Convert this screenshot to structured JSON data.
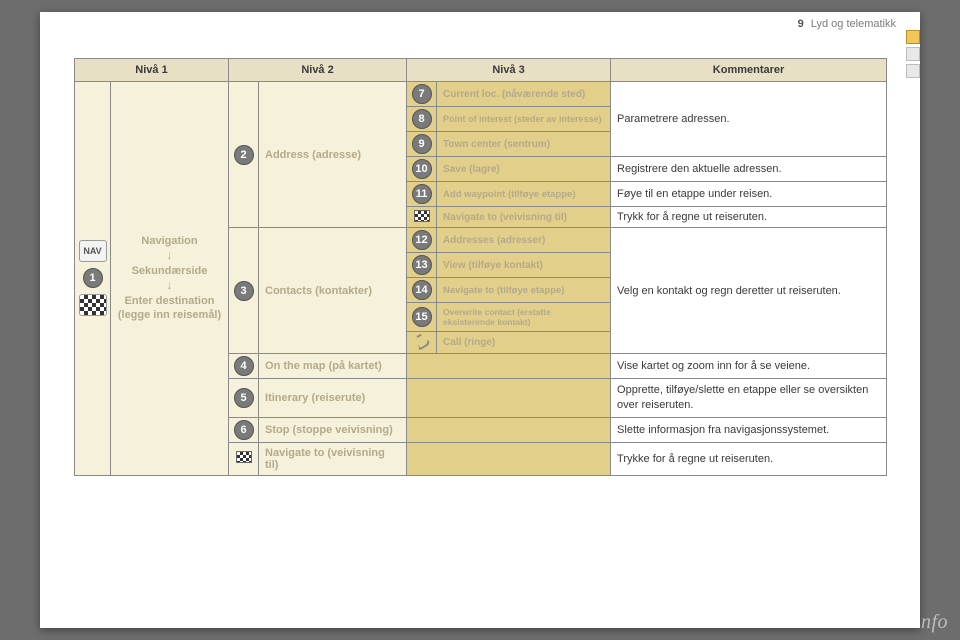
{
  "header": {
    "section_num": "9",
    "section_title": "Lyd og telematikk"
  },
  "table": {
    "headers": {
      "l1": "Nivå 1",
      "l2": "Nivå 2",
      "l3": "Nivå 3",
      "cmt": "Kommentarer"
    },
    "left": {
      "icon_top_label": "NAV",
      "circle": "1",
      "line1": "Navigation",
      "line2": "Sekundærside",
      "line3a": "Enter destination",
      "line3b": "(legge inn reisemål)"
    },
    "lvl2": {
      "r_address": {
        "num": "2",
        "label": "Address (adresse)"
      },
      "r_contacts": {
        "num": "3",
        "label": "Contacts (kontakter)"
      },
      "r_map": {
        "num": "4",
        "label": "On the map (på kartet)"
      },
      "r_itin": {
        "num": "5",
        "label": "Itinerary (reiserute)"
      },
      "r_stop": {
        "num": "6",
        "label": "Stop (stoppe veivisning)"
      },
      "r_navto": {
        "label": "Navigate to (veivisning til)"
      }
    },
    "lvl3": {
      "a7": {
        "num": "7",
        "label": "Current loc. (nåværende sted)"
      },
      "a8": {
        "num": "8",
        "label": "Point of interest (steder av interesse)"
      },
      "a9": {
        "num": "9",
        "label": "Town center (sentrum)"
      },
      "a10": {
        "num": "10",
        "label": "Save (lagre)"
      },
      "a11": {
        "num": "11",
        "label": "Add waypoint (tilføye etappe)"
      },
      "a_nav": {
        "label": "Navigate to (veivisning til)"
      },
      "c12": {
        "num": "12",
        "label": "Addresses (adresser)"
      },
      "c13": {
        "num": "13",
        "label": "View (tilføye kontakt)"
      },
      "c14": {
        "num": "14",
        "label": "Navigate to (tilføye etappe)"
      },
      "c15": {
        "num": "15",
        "label": "Overwrite contact (erstatte eksisterende kontakt)"
      },
      "c_call": {
        "label": "Call (ringe)"
      }
    },
    "comments": {
      "param": "Parametrere adressen.",
      "save": "Registrere den aktuelle adressen.",
      "addwp": "Føye til en etappe under reisen.",
      "calc": "Trykk for å regne ut reiseruten.",
      "contact": "Velg en kontakt og regn deretter ut reiseruten.",
      "map": "Vise kartet og zoom inn for å se veiene.",
      "itin": "Opprette, tilføye/slette en etappe eller se oversikten over reiseruten.",
      "stop": "Slette informasjon fra navigasjonssystemet.",
      "navto": "Trykke for å regne ut reiseruten."
    }
  },
  "footer": {
    "watermark": "carmanualsonline.info"
  }
}
